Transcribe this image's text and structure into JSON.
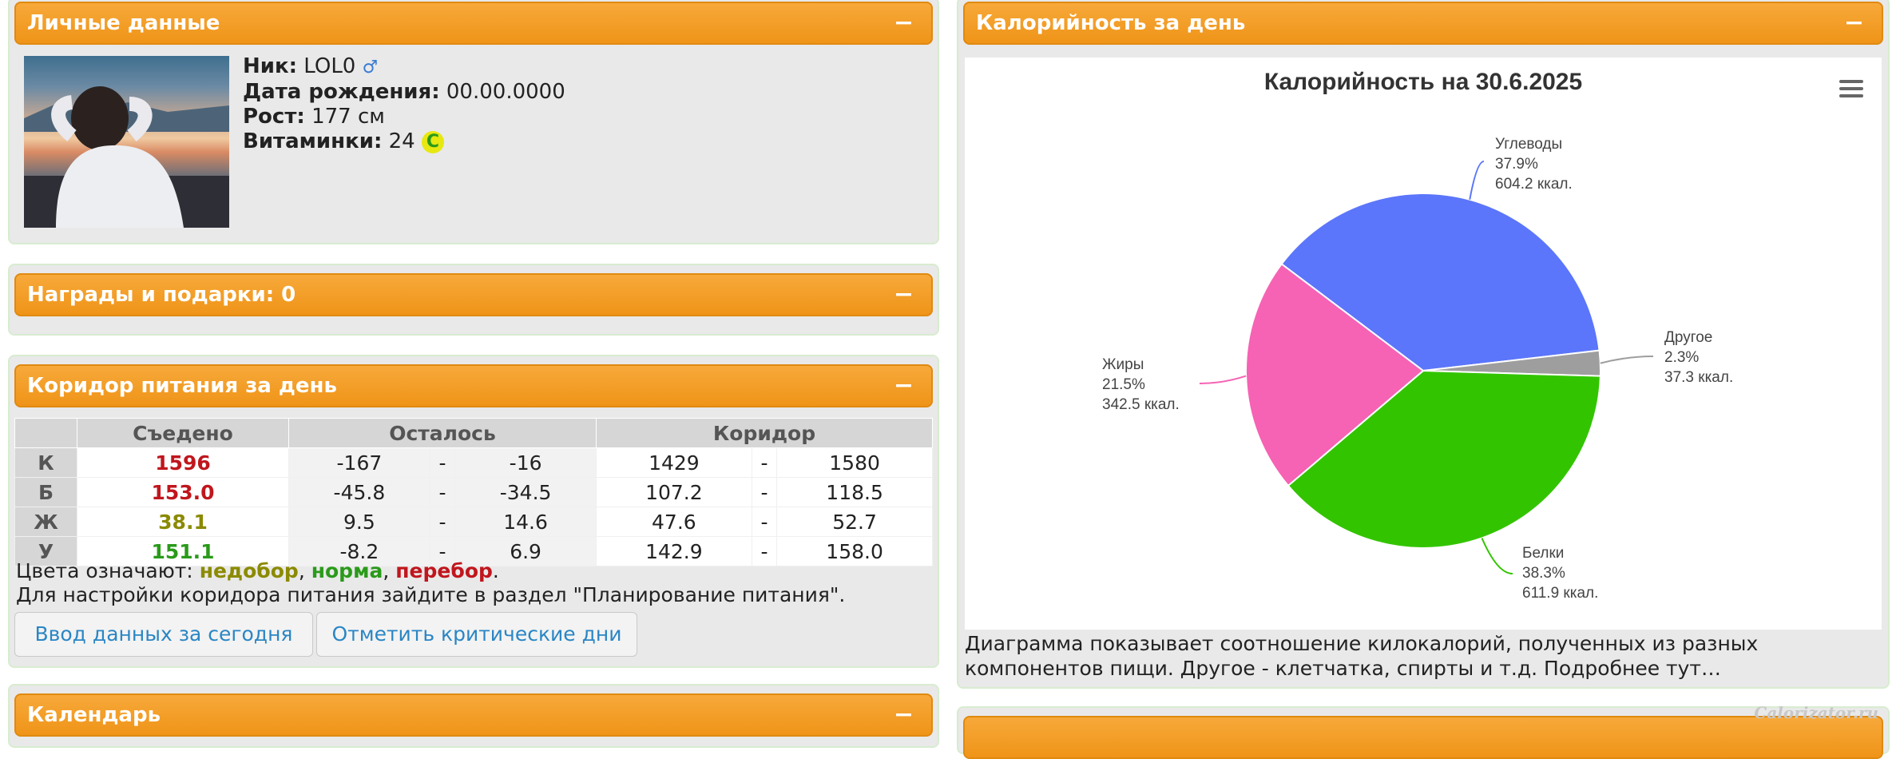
{
  "personal": {
    "title": "Личные данные",
    "collapse": "−",
    "nick_label": "Ник:",
    "nick_value": "LOL0",
    "gender_symbol": "♂",
    "birth_label": "Дата рождения:",
    "birth_value": "00.00.0000",
    "height_label": "Рост:",
    "height_value": "177 см",
    "vitamins_label": "Витаминки:",
    "vitamins_value": "24",
    "vitamin_badge": "C"
  },
  "awards": {
    "title": "Награды и подарки: 0",
    "collapse": "−"
  },
  "corridor": {
    "title": "Коридор питания за день",
    "collapse": "−",
    "headers": {
      "eaten": "Съедено",
      "left": "Осталось",
      "corridor": "Коридор"
    },
    "rows": [
      {
        "label": "К",
        "eaten": "1596",
        "eaten_color": "#c0161d",
        "left_min": "-167",
        "left_max": "-16",
        "cor_min": "1429",
        "cor_max": "1580"
      },
      {
        "label": "Б",
        "eaten": "153.0",
        "eaten_color": "#c0161d",
        "left_min": "-45.8",
        "left_max": "-34.5",
        "cor_min": "107.2",
        "cor_max": "118.5"
      },
      {
        "label": "Ж",
        "eaten": "38.1",
        "eaten_color": "#8b8a00",
        "left_min": "9.5",
        "left_max": "14.6",
        "cor_min": "47.6",
        "cor_max": "52.7"
      },
      {
        "label": "У",
        "eaten": "151.1",
        "eaten_color": "#2a9a1a",
        "left_min": "-8.2",
        "left_max": "6.9",
        "cor_min": "142.9",
        "cor_max": "158.0"
      }
    ],
    "dash": "-",
    "colors_prefix": "Цвета означают:",
    "under": "недобор",
    "sep1": ",",
    "norm": "норма",
    "sep2": ",",
    "over": "перебор",
    "end": ".",
    "under_color": "#8b8a00",
    "norm_color": "#2a9a1a",
    "over_color": "#c0161d",
    "setup_text": "Для настройки коридора питания зайдите в раздел \"Планирование питания\".",
    "btn_today": "Ввод данных за сегодня",
    "btn_critical": "Отметить критические дни"
  },
  "calendar": {
    "title": "Календарь",
    "collapse": "−"
  },
  "calories": {
    "title": "Калорийность за день",
    "collapse": "−",
    "note": "Диаграмма показывает соотношение килокалорий, полученных из разных компонентов пищи. Другое - клетчатка, спирты и т.д. Подробнее тут…"
  },
  "chart_data": {
    "type": "pie",
    "title": "Калорийность на 30.6.2025",
    "slices": [
      {
        "name": "Углеводы",
        "percent": 37.9,
        "value": 604.2,
        "unit": "ккал.",
        "pct_label": "37.9%",
        "value_label": "604.2 ккал.",
        "color": "#5b76fa"
      },
      {
        "name": "Другое",
        "percent": 2.3,
        "value": 37.3,
        "unit": "ккал.",
        "pct_label": "2.3%",
        "value_label": "37.3 ккал.",
        "color": "#9e9e9e"
      },
      {
        "name": "Белки",
        "percent": 38.3,
        "value": 611.9,
        "unit": "ккал.",
        "pct_label": "38.3%",
        "value_label": "611.9 ккал.",
        "color": "#33c400"
      },
      {
        "name": "Жиры",
        "percent": 21.5,
        "value": 342.5,
        "unit": "ккал.",
        "pct_label": "21.5%",
        "value_label": "342.5 ккал.",
        "color": "#f662b4"
      }
    ]
  },
  "watermark": "Calorizator.ru"
}
